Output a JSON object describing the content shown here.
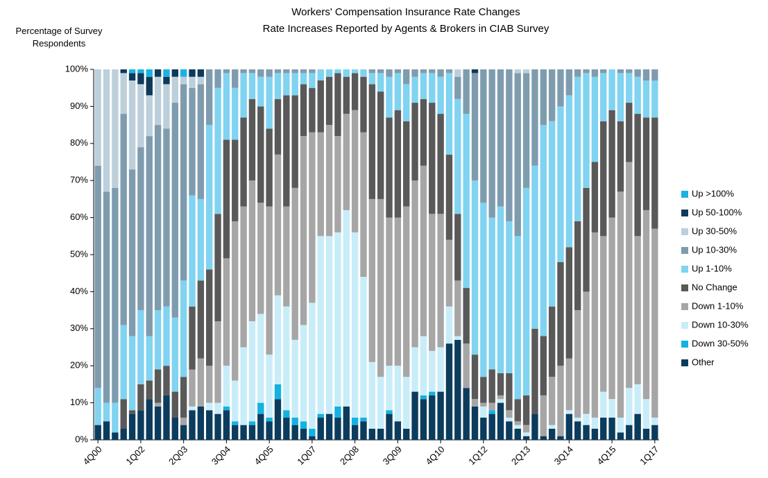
{
  "chart_data": {
    "type": "stacked_bar",
    "title": "Workers' Compensation Insurance Rate Changes",
    "subtitle": "Rate Increases Reported by Agents & Brokers in CIAB Survey",
    "y_label": "Percentage of Survey Respondents",
    "categories": [
      "4Q00",
      null,
      null,
      null,
      null,
      "1Q02",
      null,
      null,
      null,
      null,
      "2Q03",
      null,
      null,
      null,
      null,
      "3Q04",
      null,
      null,
      null,
      null,
      "4Q05",
      null,
      null,
      null,
      null,
      "1Q07",
      null,
      null,
      null,
      null,
      "2Q08",
      null,
      null,
      null,
      null,
      "3Q09",
      null,
      null,
      null,
      null,
      "4Q10",
      null,
      null,
      null,
      null,
      "1Q12",
      null,
      null,
      null,
      null,
      "2Q13",
      null,
      null,
      null,
      null,
      "3Q14",
      null,
      null,
      null,
      null,
      "4Q15",
      null,
      null,
      null,
      null,
      "1Q17"
    ],
    "series": [
      {
        "name": "Other",
        "color": "#0b3c5d",
        "values": [
          4,
          5,
          2,
          3,
          7,
          8,
          11,
          9,
          12,
          6,
          4,
          8,
          9,
          8,
          7,
          8,
          4,
          4,
          4,
          7,
          5,
          11,
          6,
          4,
          3,
          1,
          6,
          7,
          6,
          9,
          4,
          5,
          3,
          3,
          7,
          5,
          3,
          13,
          11,
          12,
          13,
          26,
          27,
          14,
          9,
          6,
          7,
          10,
          5,
          3,
          1,
          7,
          1,
          3,
          1,
          7,
          5,
          4,
          3,
          6,
          6,
          2,
          4,
          7,
          3,
          4
        ]
      },
      {
        "name": "Down 30-50%",
        "color": "#12b2e2",
        "values": [
          0,
          0,
          0,
          0,
          0,
          0,
          0,
          0,
          0,
          0,
          0,
          0,
          0,
          0,
          0,
          1,
          1,
          0,
          1,
          3,
          1,
          4,
          2,
          2,
          2,
          2,
          1,
          0,
          3,
          0,
          2,
          1,
          0,
          0,
          1,
          0,
          0,
          0,
          1,
          1,
          0,
          0,
          0,
          0,
          0,
          0,
          1,
          0,
          0,
          0,
          0,
          0,
          0,
          0,
          0,
          0,
          0,
          0,
          0,
          0,
          0,
          0,
          0,
          0,
          0,
          0
        ]
      },
      {
        "name": "Down 10-30%",
        "color": "#c8edf9",
        "values": [
          0,
          0,
          0,
          0,
          0,
          0,
          0,
          0,
          0,
          0,
          0,
          1,
          0,
          2,
          3,
          11,
          11,
          21,
          27,
          24,
          17,
          24,
          28,
          21,
          26,
          34,
          48,
          48,
          47,
          53,
          50,
          38,
          18,
          14,
          12,
          15,
          14,
          12,
          16,
          11,
          12,
          10,
          1,
          0,
          0,
          3,
          0,
          1,
          1,
          1,
          1,
          0,
          0,
          1,
          0,
          1,
          1,
          3,
          3,
          7,
          5,
          4,
          10,
          8,
          8,
          2
        ]
      },
      {
        "name": "Down 1-10%",
        "color": "#a6a6a6",
        "values": [
          0,
          0,
          0,
          0,
          0,
          0,
          0,
          1,
          0,
          0,
          2,
          10,
          13,
          10,
          22,
          29,
          43,
          38,
          38,
          30,
          40,
          38,
          27,
          41,
          51,
          46,
          28,
          30,
          26,
          26,
          33,
          39,
          44,
          48,
          40,
          40,
          46,
          45,
          46,
          37,
          36,
          18,
          15,
          12,
          2,
          1,
          2,
          1,
          2,
          1,
          2,
          0,
          11,
          13,
          19,
          14,
          29,
          33,
          50,
          42,
          49,
          61,
          61,
          40,
          51,
          51
        ]
      },
      {
        "name": "No Change",
        "color": "#595959",
        "values": [
          0,
          0,
          0,
          8,
          1,
          7,
          5,
          9,
          8,
          7,
          11,
          17,
          21,
          26,
          29,
          32,
          22,
          24,
          22,
          26,
          21,
          15,
          30,
          25,
          14,
          12,
          14,
          13,
          17,
          10,
          10,
          15,
          31,
          29,
          27,
          29,
          23,
          21,
          18,
          30,
          27,
          23,
          18,
          15,
          12,
          7,
          9,
          6,
          10,
          6,
          8,
          23,
          16,
          19,
          28,
          30,
          24,
          28,
          19,
          31,
          29,
          19,
          16,
          33,
          25,
          30
        ]
      },
      {
        "name": "Up 1-10%",
        "color": "#80d3f1",
        "values": [
          10,
          5,
          8,
          20,
          20,
          20,
          12,
          16,
          16,
          20,
          26,
          30,
          22,
          39,
          34,
          18,
          14,
          12,
          7,
          8,
          14,
          7,
          6,
          6,
          3,
          4,
          3,
          2,
          1,
          2,
          1,
          2,
          3,
          5,
          11,
          10,
          10,
          7,
          7,
          8,
          10,
          22,
          31,
          47,
          47,
          47,
          41,
          45,
          41,
          44,
          56,
          44,
          57,
          50,
          42,
          41,
          39,
          31,
          23,
          13,
          11,
          13,
          8,
          10,
          10,
          10
        ]
      },
      {
        "name": "Up 10-30%",
        "color": "#7f9caf",
        "values": [
          60,
          57,
          58,
          57,
          45,
          44,
          54,
          50,
          48,
          58,
          53,
          29,
          31,
          15,
          5,
          1,
          5,
          1,
          1,
          2,
          2,
          1,
          1,
          1,
          1,
          1,
          0,
          0,
          0,
          0,
          0,
          0,
          1,
          1,
          2,
          1,
          4,
          2,
          1,
          1,
          2,
          1,
          6,
          12,
          29,
          36,
          40,
          37,
          41,
          44,
          31,
          26,
          15,
          14,
          10,
          7,
          2,
          1,
          2,
          1,
          0,
          1,
          1,
          2,
          3,
          3
        ]
      },
      {
        "name": "Up 30-50%",
        "color": "#bccfdb",
        "values": [
          26,
          33,
          32,
          11,
          24,
          17,
          11,
          13,
          12,
          7,
          2,
          3,
          2,
          0,
          0,
          0,
          0,
          0,
          0,
          0,
          0,
          0,
          0,
          0,
          0,
          0,
          0,
          0,
          0,
          0,
          0,
          0,
          0,
          0,
          0,
          0,
          0,
          0,
          0,
          0,
          0,
          0,
          2,
          0,
          0,
          0,
          0,
          0,
          0,
          1,
          1,
          0,
          0,
          0,
          0,
          0,
          0,
          0,
          0,
          0,
          0,
          0,
          0,
          0,
          0,
          0
        ]
      },
      {
        "name": "Up 50-100%",
        "color": "#0d3a5a",
        "values": [
          0,
          0,
          0,
          1,
          2,
          3,
          5,
          2,
          2,
          2,
          0,
          2,
          2,
          0,
          0,
          0,
          0,
          0,
          0,
          0,
          0,
          0,
          0,
          0,
          0,
          0,
          0,
          0,
          0,
          0,
          0,
          0,
          0,
          0,
          0,
          0,
          0,
          0,
          0,
          0,
          0,
          0,
          0,
          0,
          1,
          0,
          0,
          0,
          0,
          0,
          0,
          0,
          0,
          0,
          0,
          0,
          0,
          0,
          0,
          0,
          0,
          0,
          0,
          0,
          0,
          0
        ]
      },
      {
        "name": "Up >100%",
        "color": "#1ab2e4",
        "values": [
          0,
          0,
          0,
          0,
          1,
          1,
          2,
          0,
          2,
          0,
          2,
          0,
          0,
          0,
          0,
          0,
          0,
          0,
          0,
          0,
          0,
          0,
          0,
          0,
          0,
          0,
          0,
          0,
          0,
          0,
          0,
          0,
          0,
          0,
          0,
          0,
          0,
          0,
          0,
          0,
          0,
          0,
          0,
          0,
          0,
          0,
          0,
          0,
          0,
          0,
          0,
          0,
          0,
          0,
          0,
          0,
          0,
          0,
          0,
          0,
          0,
          0,
          0,
          0,
          0,
          0
        ]
      }
    ],
    "ylim": [
      0,
      100
    ],
    "yticks": [
      {
        "value": 0,
        "label": "0%"
      },
      {
        "value": 10,
        "label": "10%"
      },
      {
        "value": 20,
        "label": "20%"
      },
      {
        "value": 30,
        "label": "30%"
      },
      {
        "value": 40,
        "label": "40%"
      },
      {
        "value": 50,
        "label": "50%"
      },
      {
        "value": 60,
        "label": "60%"
      },
      {
        "value": 70,
        "label": "70%"
      },
      {
        "value": 80,
        "label": "80%"
      },
      {
        "value": 90,
        "label": "90%"
      },
      {
        "value": 100,
        "label": "100%"
      }
    ],
    "grid": false,
    "legend": "right"
  }
}
